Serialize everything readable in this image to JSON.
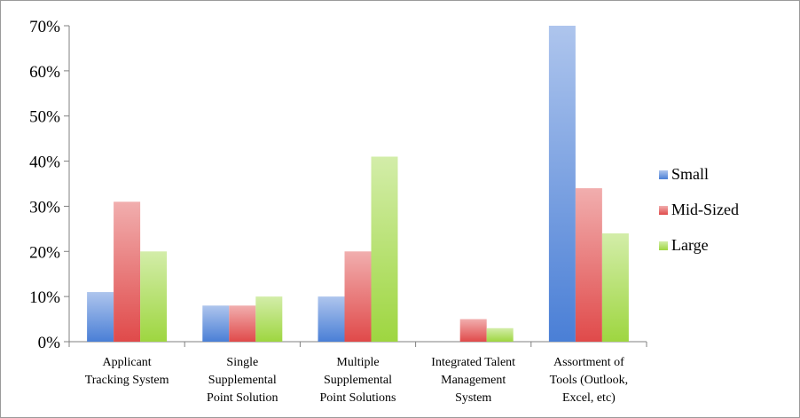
{
  "chart_data": {
    "type": "bar",
    "categories": [
      [
        "Applicant",
        "Tracking System"
      ],
      [
        "Single",
        "Supplemental",
        "Point Solution"
      ],
      [
        "Multiple",
        "Supplemental",
        "Point Solutions"
      ],
      [
        "Integrated Talent",
        "Management",
        "System"
      ],
      [
        "Assortment of",
        "Tools (Outlook,",
        "Excel, etc)"
      ]
    ],
    "series": [
      {
        "name": "Small",
        "values": [
          11,
          8,
          10,
          0,
          70
        ],
        "color": "#4a7fd6"
      },
      {
        "name": "Mid-Sized",
        "values": [
          31,
          8,
          20,
          5,
          34
        ],
        "color": "#e04a4a"
      },
      {
        "name": "Large",
        "values": [
          20,
          10,
          41,
          3,
          24
        ],
        "color": "#9ed640"
      }
    ],
    "ylim": [
      0,
      70
    ],
    "yticks": [
      "0%",
      "10%",
      "20%",
      "30%",
      "40%",
      "50%",
      "60%",
      "70%"
    ],
    "ytick_values": [
      0,
      10,
      20,
      30,
      40,
      50,
      60,
      70
    ],
    "legend_position": "right",
    "grid": false
  }
}
